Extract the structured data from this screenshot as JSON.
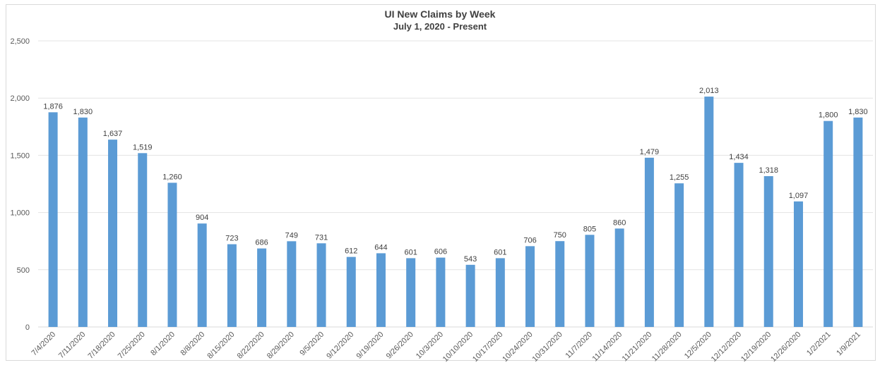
{
  "chart_data": {
    "type": "bar",
    "title": "UI New Claims by Week",
    "subtitle": "July 1, 2020 - Present",
    "xlabel": "",
    "ylabel": "",
    "ylim": [
      0,
      2500
    ],
    "yticks": [
      0,
      500,
      1000,
      1500,
      2000,
      2500
    ],
    "ytick_labels": [
      "0",
      "500",
      "1,000",
      "1,500",
      "2,000",
      "2,500"
    ],
    "grid": true,
    "legend": "none",
    "bar_color": "#5b9bd5",
    "categories": [
      "7/4/2020",
      "7/11/2020",
      "7/18/2020",
      "7/25/2020",
      "8/1/2020",
      "8/8/2020",
      "8/15/2020",
      "8/22/2020",
      "8/29/2020",
      "9/5/2020",
      "9/12/2020",
      "9/19/2020",
      "9/26/2020",
      "10/3/2020",
      "10/10/2020",
      "10/17/2020",
      "10/24/2020",
      "10/31/2020",
      "11/7/2020",
      "11/14/2020",
      "11/21/2020",
      "11/28/2020",
      "12/5/2020",
      "12/12/2020",
      "12/19/2020",
      "12/26/2020",
      "1/2/2021",
      "1/9/2021"
    ],
    "values": [
      1876,
      1830,
      1637,
      1519,
      1260,
      904,
      723,
      686,
      749,
      731,
      612,
      644,
      601,
      606,
      543,
      601,
      706,
      750,
      805,
      860,
      1479,
      1255,
      2013,
      1434,
      1318,
      1097,
      1800,
      1830
    ],
    "value_labels": [
      "1,876",
      "1,830",
      "1,637",
      "1,519",
      "1,260",
      "904",
      "723",
      "686",
      "749",
      "731",
      "612",
      "644",
      "601",
      "606",
      "543",
      "601",
      "706",
      "750",
      "805",
      "860",
      "1,479",
      "1,255",
      "2,013",
      "1,434",
      "1,318",
      "1,097",
      "1,800",
      "1,830"
    ]
  }
}
